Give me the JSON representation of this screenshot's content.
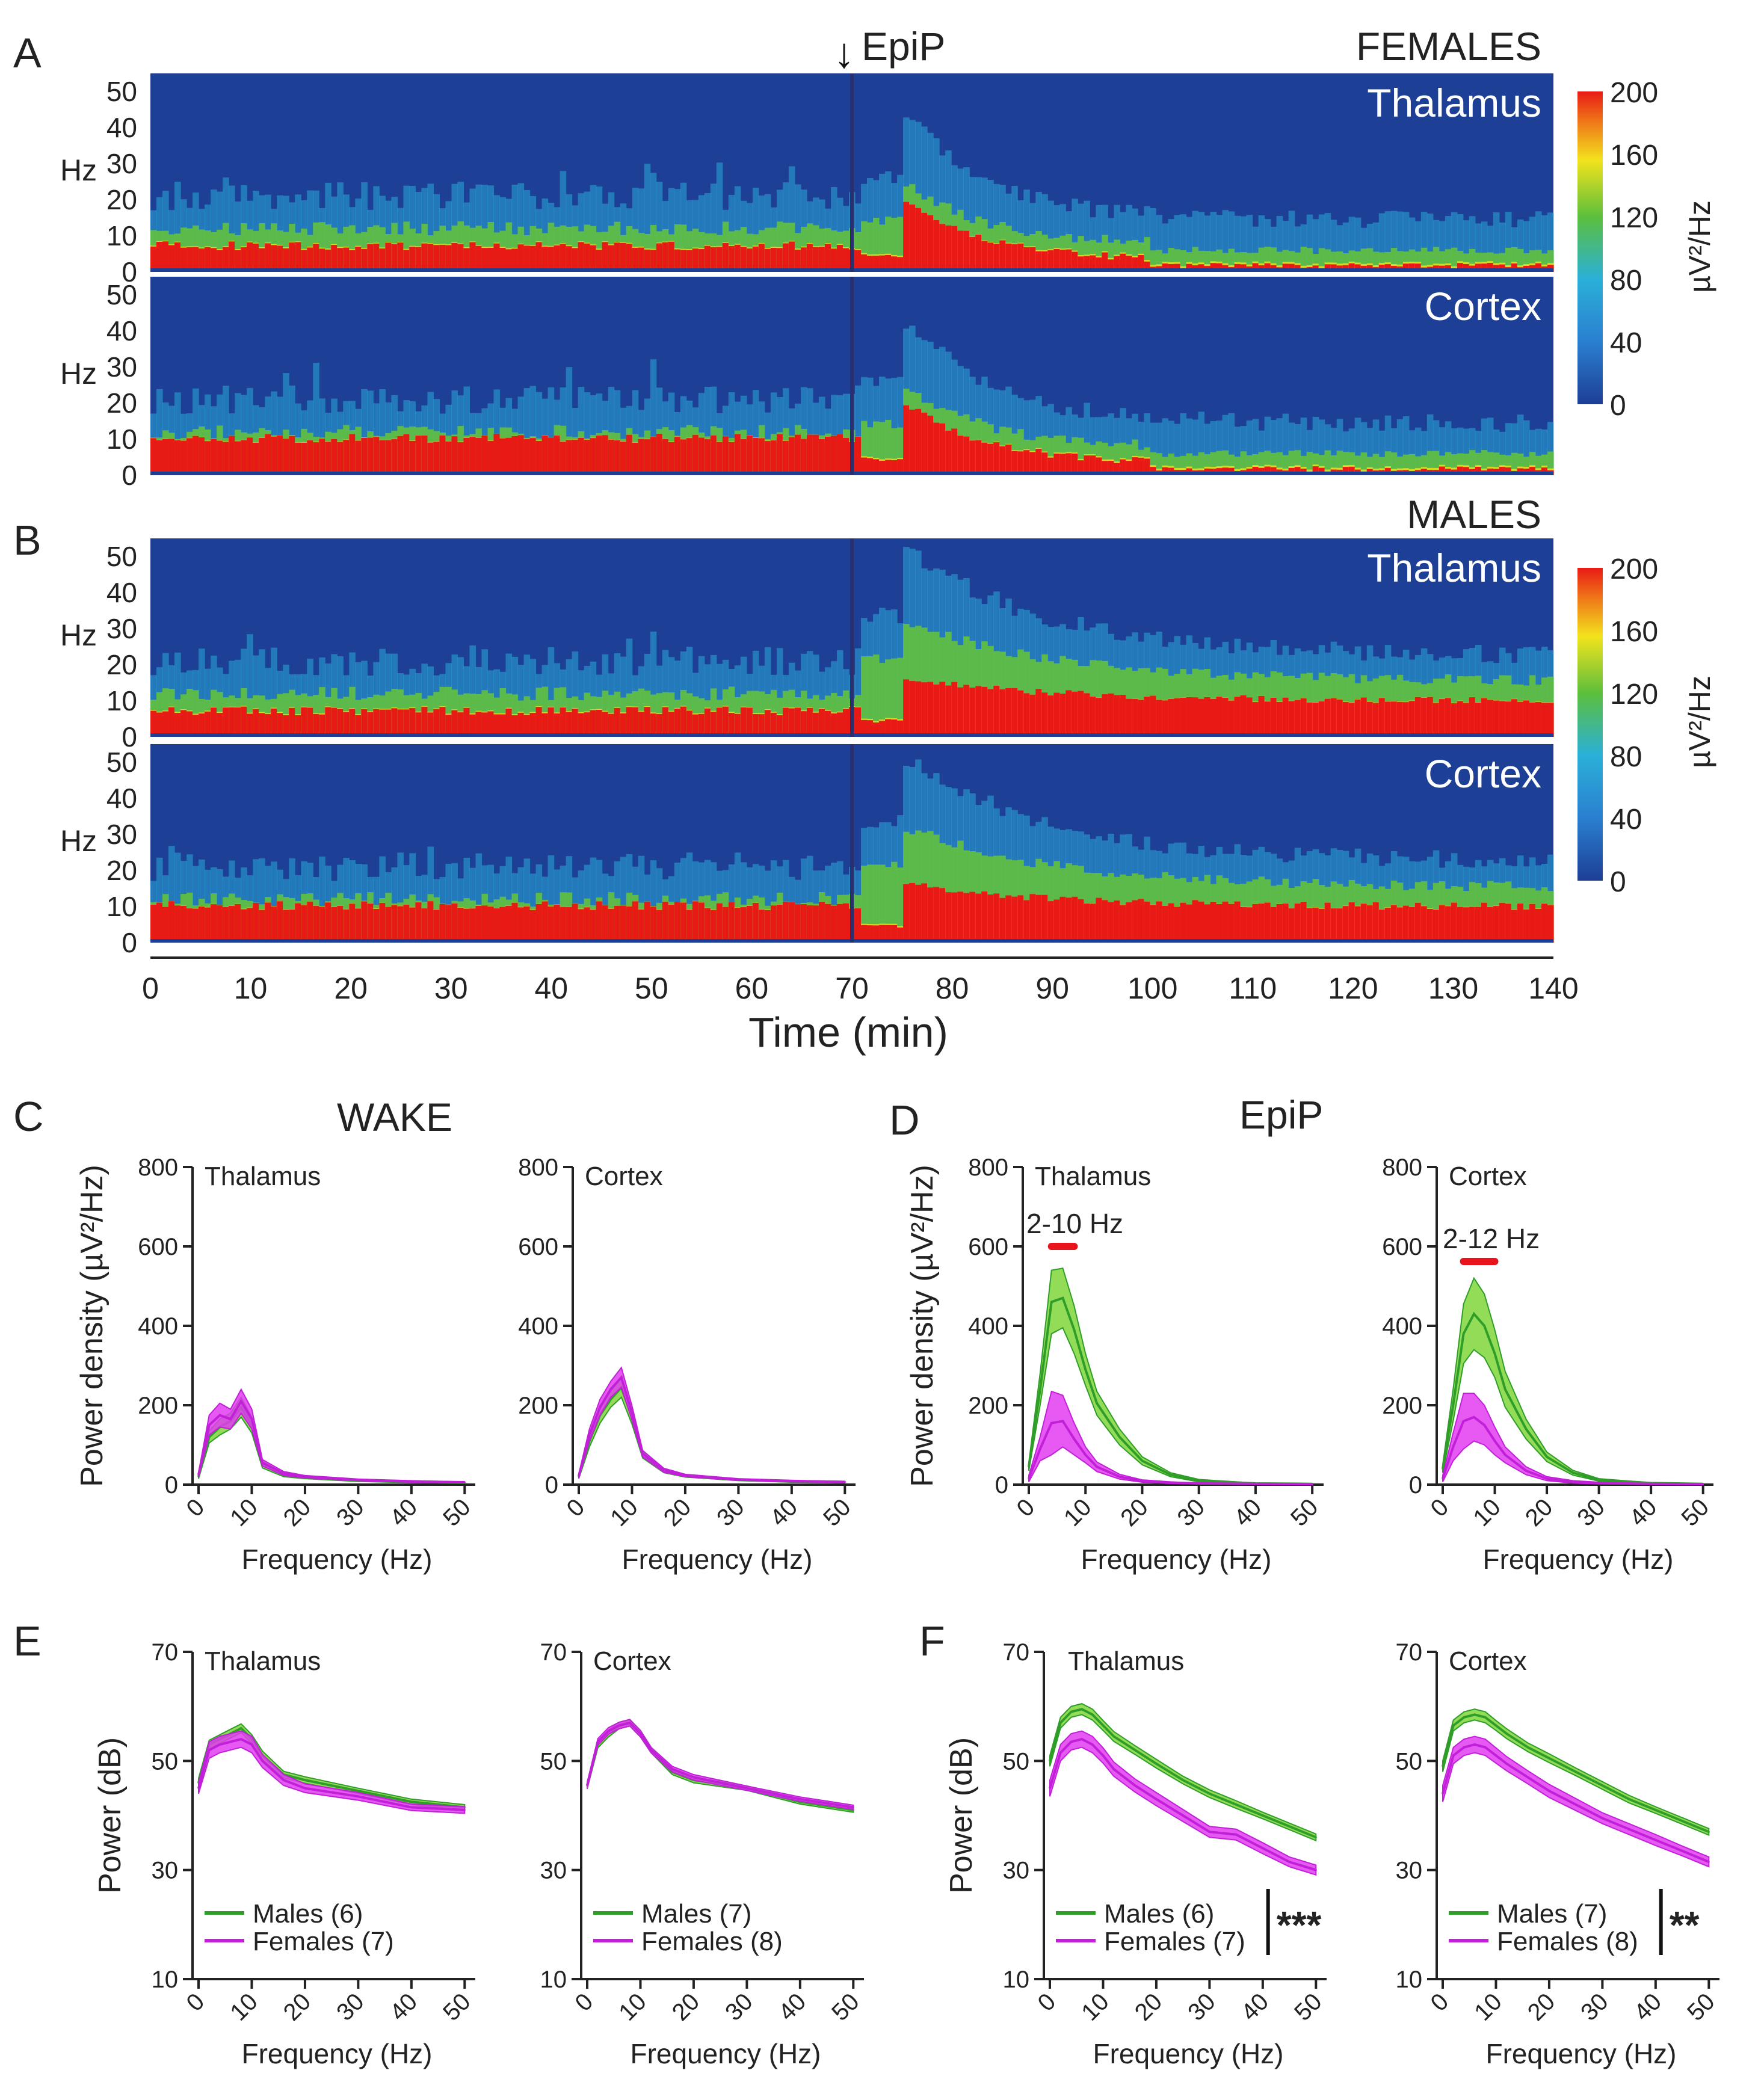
{
  "colors": {
    "males": "#2e9e28",
    "males_fill": "#7fd63b",
    "females": "#c21fd9",
    "females_fill": "#e23cf0",
    "sig_bar": "#e8141c",
    "spec_bg": "#1d3f95",
    "spec_cyan": "#2aa9d8",
    "spec_green": "#63c13f",
    "spec_yellow": "#f2e31d",
    "spec_red": "#e81a16"
  },
  "spectrogram": {
    "panel_a": {
      "letter": "A",
      "group": "FEMALES"
    },
    "panel_b": {
      "letter": "B",
      "group": "MALES"
    },
    "epip_label": "EpiP",
    "arrow": "↓",
    "region_thalamus": "Thalamus",
    "region_cortex": "Cortex",
    "hz_label": "Hz",
    "y_ticks": [
      "50",
      "40",
      "30",
      "20",
      "10",
      "0"
    ],
    "colorbar_ticks": [
      "200",
      "160",
      "120",
      "80",
      "40",
      "0"
    ],
    "colorbar_label": "µV²/Hz",
    "x_ticks": [
      "0",
      "10",
      "20",
      "30",
      "40",
      "50",
      "60",
      "70",
      "80",
      "90",
      "100",
      "110",
      "120",
      "130",
      "140"
    ],
    "x_label": "Time (min)",
    "colorbar_range": [
      0,
      200
    ],
    "time_range": [
      0,
      140
    ],
    "freq_range": [
      0,
      55
    ],
    "injection_time": 70
  },
  "section_labels": {
    "c": "C",
    "d": "D",
    "e": "E",
    "f": "F",
    "wake": "WAKE",
    "epip": "EpiP"
  },
  "labels": {
    "power_density_ylabel": "Power density (µV²/Hz)",
    "power_db_ylabel": "Power (dB)",
    "frequency_xlabel": "Frequency (Hz)",
    "thalamus": "Thalamus",
    "cortex": "Cortex"
  },
  "chart_data": [
    {
      "id": "C-thalamus",
      "type": "line",
      "title": "Thalamus",
      "xlabel": "Frequency (Hz)",
      "ylabel": "Power density (µV²/Hz)",
      "x": [
        0,
        2,
        4,
        6,
        8,
        10,
        12,
        16,
        20,
        30,
        40,
        50
      ],
      "xlim": [
        0,
        52
      ],
      "ylim": [
        0,
        800
      ],
      "xticks": [
        "0",
        "10",
        "20",
        "30",
        "40",
        "50"
      ],
      "yticks": [
        "0",
        "200",
        "400",
        "600",
        "800"
      ],
      "series": [
        {
          "name": "Males",
          "values": [
            20,
            120,
            145,
            160,
            195,
            150,
            50,
            25,
            18,
            10,
            7,
            5
          ],
          "err": [
            5,
            15,
            20,
            20,
            25,
            20,
            8,
            5,
            3,
            2,
            2,
            1
          ]
        },
        {
          "name": "Females",
          "values": [
            25,
            150,
            175,
            165,
            210,
            165,
            55,
            28,
            20,
            12,
            8,
            6
          ],
          "err": [
            5,
            25,
            30,
            25,
            30,
            25,
            8,
            5,
            3,
            2,
            2,
            1
          ]
        }
      ]
    },
    {
      "id": "C-cortex",
      "type": "line",
      "title": "Cortex",
      "xlabel": "Frequency (Hz)",
      "ylabel": "",
      "x": [
        0,
        2,
        4,
        6,
        8,
        10,
        12,
        16,
        20,
        30,
        40,
        50
      ],
      "xlim": [
        0,
        52
      ],
      "ylim": [
        0,
        800
      ],
      "xticks": [
        "0",
        "10",
        "20",
        "30",
        "40",
        "50"
      ],
      "yticks": [
        "0",
        "200",
        "400",
        "600",
        "800"
      ],
      "series": [
        {
          "name": "Males",
          "values": [
            20,
            110,
            175,
            215,
            245,
            170,
            75,
            35,
            22,
            12,
            8,
            6
          ],
          "err": [
            5,
            15,
            20,
            20,
            25,
            18,
            8,
            5,
            3,
            2,
            2,
            1
          ]
        },
        {
          "name": "Females",
          "values": [
            22,
            125,
            195,
            240,
            270,
            180,
            78,
            36,
            23,
            13,
            9,
            7
          ],
          "err": [
            5,
            15,
            20,
            20,
            25,
            18,
            8,
            5,
            3,
            2,
            2,
            1
          ]
        }
      ]
    },
    {
      "id": "D-thalamus",
      "type": "line",
      "title": "Thalamus",
      "xlabel": "Frequency (Hz)",
      "ylabel": "Power density (µV²/Hz)",
      "x": [
        0,
        2,
        4,
        6,
        8,
        10,
        12,
        16,
        20,
        25,
        30,
        40,
        50
      ],
      "xlim": [
        0,
        52
      ],
      "ylim": [
        0,
        800
      ],
      "xticks": [
        "0",
        "10",
        "20",
        "30",
        "40",
        "50"
      ],
      "yticks": [
        "0",
        "200",
        "400",
        "600",
        "800"
      ],
      "significance": {
        "label": "2-10 Hz",
        "from": 4,
        "to": 8
      },
      "series": [
        {
          "name": "Males",
          "values": [
            45,
            240,
            460,
            470,
            390,
            290,
            205,
            120,
            60,
            25,
            10,
            3,
            2
          ],
          "err": [
            10,
            40,
            80,
            75,
            60,
            40,
            30,
            20,
            10,
            5,
            3,
            1,
            1
          ]
        },
        {
          "name": "Females",
          "values": [
            15,
            90,
            155,
            160,
            115,
            75,
            45,
            20,
            9,
            5,
            3,
            2,
            1
          ],
          "err": [
            8,
            30,
            80,
            65,
            40,
            20,
            12,
            6,
            3,
            2,
            1,
            1,
            1
          ]
        }
      ]
    },
    {
      "id": "D-cortex",
      "type": "line",
      "title": "Cortex",
      "xlabel": "Frequency (Hz)",
      "ylabel": "",
      "x": [
        0,
        2,
        4,
        6,
        8,
        10,
        12,
        16,
        20,
        25,
        30,
        40,
        50
      ],
      "xlim": [
        0,
        52
      ],
      "ylim": [
        0,
        800
      ],
      "xticks": [
        "0",
        "10",
        "20",
        "30",
        "40",
        "50"
      ],
      "yticks": [
        "0",
        "200",
        "400",
        "600",
        "800"
      ],
      "significance": {
        "label": "2-12 Hz",
        "from": 4,
        "to": 10
      },
      "series": [
        {
          "name": "Males",
          "values": [
            40,
            200,
            380,
            430,
            400,
            330,
            240,
            140,
            70,
            30,
            12,
            4,
            2
          ],
          "err": [
            10,
            40,
            75,
            90,
            80,
            60,
            45,
            25,
            12,
            6,
            3,
            1,
            1
          ]
        },
        {
          "name": "Females",
          "values": [
            15,
            95,
            160,
            170,
            150,
            110,
            75,
            35,
            15,
            7,
            4,
            2,
            1
          ],
          "err": [
            8,
            35,
            70,
            60,
            50,
            35,
            20,
            10,
            5,
            3,
            2,
            1,
            1
          ]
        }
      ]
    },
    {
      "id": "E-thalamus",
      "type": "line",
      "title": "Thalamus",
      "xlabel": "Frequency (Hz)",
      "ylabel": "Power (dB)",
      "x": [
        0,
        2,
        4,
        6,
        8,
        10,
        12,
        16,
        20,
        30,
        40,
        50
      ],
      "xlim": [
        0,
        52
      ],
      "ylim": [
        10,
        70
      ],
      "xticks": [
        "0",
        "10",
        "20",
        "30",
        "40",
        "50"
      ],
      "yticks": [
        "10",
        "30",
        "50",
        "70"
      ],
      "legend": [
        {
          "name": "Males (6)"
        },
        {
          "name": "Females (7)"
        }
      ],
      "series": [
        {
          "name": "Males (6)",
          "values": [
            46,
            53,
            54,
            55,
            56,
            54,
            51,
            47.5,
            46.5,
            44.5,
            42.5,
            41.5
          ],
          "err": [
            0.8,
            0.8,
            0.8,
            0.8,
            0.8,
            0.8,
            0.8,
            0.6,
            0.6,
            0.5,
            0.5,
            0.5
          ]
        },
        {
          "name": "Females (7)",
          "values": [
            45,
            52,
            53,
            53.5,
            54,
            53,
            50,
            46.5,
            45,
            43.5,
            41.5,
            41
          ],
          "err": [
            1,
            1.5,
            1.5,
            1.5,
            1.5,
            1.5,
            1.2,
            1,
            0.8,
            0.7,
            0.6,
            0.6
          ]
        }
      ]
    },
    {
      "id": "E-cortex",
      "type": "line",
      "title": "Cortex",
      "xlabel": "Frequency (Hz)",
      "ylabel": "",
      "x": [
        0,
        2,
        4,
        6,
        8,
        10,
        12,
        16,
        20,
        30,
        40,
        50
      ],
      "xlim": [
        0,
        52
      ],
      "ylim": [
        10,
        70
      ],
      "xticks": [
        "0",
        "10",
        "20",
        "30",
        "40",
        "50"
      ],
      "yticks": [
        "10",
        "30",
        "50",
        "70"
      ],
      "legend": [
        {
          "name": "Males (7)"
        },
        {
          "name": "Females (8)"
        }
      ],
      "series": [
        {
          "name": "Males (7)",
          "values": [
            45.5,
            53,
            55,
            56.5,
            57,
            55,
            52,
            48,
            46.5,
            45,
            42.5,
            41
          ],
          "err": [
            0.6,
            0.6,
            0.6,
            0.6,
            0.6,
            0.6,
            0.5,
            0.5,
            0.5,
            0.4,
            0.4,
            0.4
          ]
        },
        {
          "name": "Females (8)",
          "values": [
            45.5,
            53.5,
            55.5,
            56.5,
            57,
            55,
            52,
            48.5,
            47,
            45,
            43,
            41.5
          ],
          "err": [
            0.6,
            0.6,
            0.6,
            0.6,
            0.6,
            0.6,
            0.5,
            0.5,
            0.5,
            0.4,
            0.4,
            0.4
          ]
        }
      ]
    },
    {
      "id": "F-thalamus",
      "type": "line",
      "title": "Thalamus",
      "xlabel": "Frequency (Hz)",
      "ylabel": "Power (dB)",
      "x": [
        0,
        2,
        4,
        6,
        8,
        10,
        12,
        16,
        20,
        25,
        30,
        35,
        40,
        45,
        50
      ],
      "xlim": [
        0,
        52
      ],
      "ylim": [
        10,
        70
      ],
      "xticks": [
        "0",
        "10",
        "20",
        "30",
        "40",
        "50"
      ],
      "yticks": [
        "10",
        "30",
        "50",
        "70"
      ],
      "legend": [
        {
          "name": "Males (6)"
        },
        {
          "name": "Females (7)"
        }
      ],
      "significance": {
        "label": "***"
      },
      "series": [
        {
          "name": "Males (6)",
          "values": [
            50,
            57,
            59,
            59.5,
            58.5,
            56.5,
            54.5,
            52,
            49.5,
            46.5,
            44,
            42,
            40,
            38,
            36
          ],
          "err": [
            1,
            1,
            1,
            1,
            1,
            0.9,
            0.9,
            0.8,
            0.8,
            0.7,
            0.7,
            0.7,
            0.6,
            0.6,
            0.6
          ]
        },
        {
          "name": "Females (7)",
          "values": [
            45,
            51.5,
            53.5,
            54,
            53,
            51,
            48.5,
            45.5,
            43,
            40,
            37,
            36.5,
            34,
            31.5,
            30
          ],
          "err": [
            1.5,
            1.5,
            1.5,
            1.5,
            1.5,
            1.4,
            1.3,
            1.2,
            1.2,
            1.1,
            1,
            1,
            1,
            0.9,
            0.9
          ]
        }
      ]
    },
    {
      "id": "F-cortex",
      "type": "line",
      "title": "Cortex",
      "xlabel": "Frequency (Hz)",
      "ylabel": "",
      "x": [
        0,
        2,
        4,
        6,
        8,
        10,
        12,
        16,
        20,
        25,
        30,
        35,
        40,
        45,
        50
      ],
      "xlim": [
        0,
        52
      ],
      "ylim": [
        10,
        70
      ],
      "xticks": [
        "0",
        "10",
        "20",
        "30",
        "40",
        "50"
      ],
      "yticks": [
        "10",
        "30",
        "50",
        "70"
      ],
      "legend": [
        {
          "name": "Males (7)"
        },
        {
          "name": "Females (8)"
        }
      ],
      "significance": {
        "label": "**"
      },
      "series": [
        {
          "name": "Males (7)",
          "values": [
            49,
            56.5,
            58,
            58.5,
            58,
            56.5,
            55,
            52.5,
            50.5,
            48,
            45.5,
            43,
            41,
            39,
            37
          ],
          "err": [
            1,
            1,
            1,
            1,
            1,
            0.9,
            0.9,
            0.8,
            0.8,
            0.7,
            0.7,
            0.7,
            0.6,
            0.6,
            0.6
          ]
        },
        {
          "name": "Females (8)",
          "values": [
            44,
            51,
            52.5,
            53,
            52.5,
            51,
            49.5,
            47,
            44.5,
            42,
            39.5,
            37.5,
            35.5,
            33.5,
            31.5
          ],
          "err": [
            1.5,
            1.5,
            1.5,
            1.5,
            1.5,
            1.4,
            1.3,
            1.2,
            1.2,
            1.1,
            1,
            1,
            1,
            0.9,
            0.9
          ]
        }
      ]
    }
  ]
}
